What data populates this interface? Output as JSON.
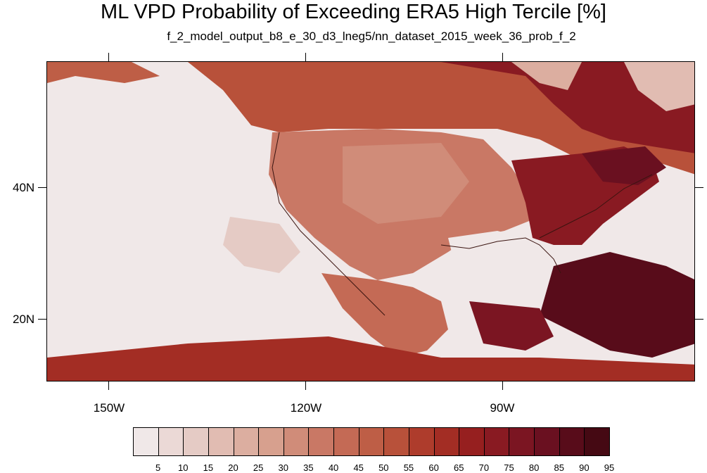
{
  "title": "ML VPD Probability of Exceeding ERA5 High Tercile [%]",
  "subtitle": "f_2_model_output_b8_e_30_d3_lneg5/nn_dataset_2015_week_36_prob_f_2",
  "map": {
    "lat_labels": [
      "40N",
      "20N"
    ],
    "lon_labels": [
      "150W",
      "120W",
      "90W"
    ]
  },
  "colorbar": {
    "labels": [
      "5",
      "10",
      "15",
      "20",
      "25",
      "30",
      "35",
      "40",
      "45",
      "50",
      "55",
      "60",
      "65",
      "70",
      "75",
      "80",
      "85",
      "90",
      "95"
    ],
    "colors": [
      "#f0e8e8",
      "#ebd9d6",
      "#e5cbc5",
      "#e1bcb2",
      "#dcaea0",
      "#d7a08e",
      "#d08c79",
      "#c97865",
      "#c46a55",
      "#be5e46",
      "#b8513a",
      "#ae3c2c",
      "#a32d24",
      "#961f1f",
      "#891a22",
      "#7b1522",
      "#6a1020",
      "#580c1a",
      "#450913"
    ]
  }
}
